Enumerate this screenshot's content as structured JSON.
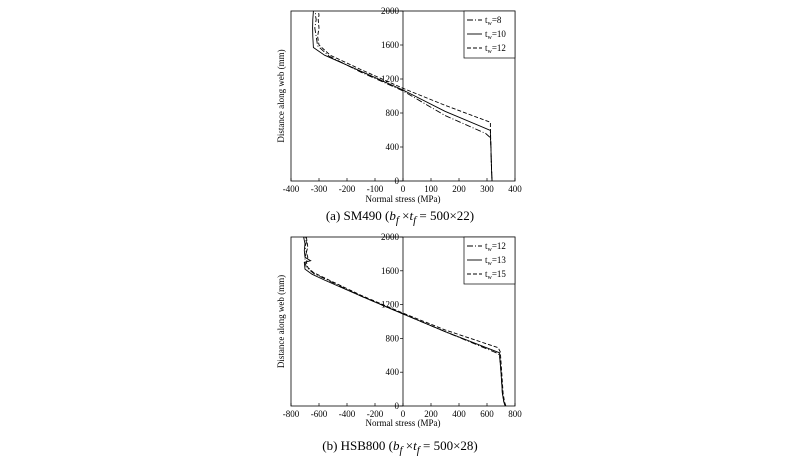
{
  "chart_data": [
    {
      "type": "line",
      "xlabel": "Normal stress (MPa)",
      "ylabel": "Distance along web (mm)",
      "xlim": [
        -400,
        400
      ],
      "ylim": [
        0,
        2000
      ],
      "xticks": [
        "-400",
        "-300",
        "-200",
        "-100",
        "0",
        "100",
        "200",
        "300",
        "400"
      ],
      "yticks": [
        "0",
        "400",
        "800",
        "1200",
        "1600",
        "2000"
      ],
      "legend_position": "top-right",
      "caption": {
        "prefix": "(a)  SM490  (",
        "math": "b",
        "sub1": "f",
        "times": " ×",
        "math2": "t",
        "sub2": "f",
        "suffix": " = 500×22)"
      },
      "series": [
        {
          "name": "t",
          "sub": "w",
          "label_suffix": "=8",
          "dash": "dashdot",
          "x": [
            318,
            316,
            314,
            312,
            295,
            150,
            0,
            -150,
            -265,
            -305,
            -310,
            -315,
            -310,
            -313,
            -312
          ],
          "y": [
            0,
            150,
            400,
            510,
            560,
            770,
            1060,
            1280,
            1470,
            1590,
            1700,
            1800,
            1900,
            1950,
            2000
          ]
        },
        {
          "name": "t",
          "sub": "w",
          "label_suffix": "=10",
          "dash": "solid",
          "x": [
            318,
            316,
            314,
            312,
            312,
            150,
            0,
            -150,
            -280,
            -320,
            -322,
            -323,
            -322,
            -321,
            -320
          ],
          "y": [
            0,
            150,
            400,
            550,
            595,
            820,
            1070,
            1290,
            1480,
            1570,
            1700,
            1800,
            1900,
            1950,
            2000
          ]
        },
        {
          "name": "t",
          "sub": "w",
          "label_suffix": "=12",
          "dash": "dashed",
          "x": [
            318,
            316,
            314,
            312,
            312,
            150,
            0,
            -150,
            -260,
            -300,
            -305,
            -300,
            -303,
            -300,
            -302
          ],
          "y": [
            0,
            150,
            400,
            620,
            690,
            890,
            1090,
            1310,
            1480,
            1600,
            1700,
            1800,
            1900,
            1950,
            2000
          ]
        }
      ]
    },
    {
      "type": "line",
      "xlabel": "Normal stress (MPa)",
      "ylabel": "Distance along web (mm)",
      "xlim": [
        -800,
        800
      ],
      "ylim": [
        0,
        2000
      ],
      "xticks": [
        "-800",
        "-600",
        "-400",
        "-200",
        "0",
        "200",
        "400",
        "600",
        "800"
      ],
      "yticks": [
        "0",
        "400",
        "800",
        "1200",
        "1600",
        "2000"
      ],
      "legend_position": "top-right",
      "caption": {
        "prefix": "(b)  HSB800  (",
        "math": "b",
        "sub1": "f",
        "times": " ×",
        "math2": "t",
        "sub2": "f",
        "suffix": " = 500×28)"
      },
      "series": [
        {
          "name": "t",
          "sub": "w",
          "label_suffix": "=12",
          "dash": "dashdot",
          "x": [
            730,
            720,
            710,
            700,
            690,
            680,
            300,
            0,
            -300,
            -540,
            -640,
            -690,
            -700,
            -700,
            -690,
            -700,
            -690,
            -700
          ],
          "y": [
            0,
            50,
            150,
            400,
            590,
            620,
            880,
            1090,
            1300,
            1490,
            1570,
            1640,
            1700,
            1760,
            1820,
            1880,
            1940,
            2000
          ]
        },
        {
          "name": "t",
          "sub": "w",
          "label_suffix": "=13",
          "dash": "solid",
          "x": [
            730,
            720,
            710,
            700,
            690,
            690,
            300,
            0,
            -300,
            -560,
            -650,
            -700,
            -705,
            -660,
            -700,
            -705,
            -700,
            -710
          ],
          "y": [
            0,
            50,
            150,
            400,
            600,
            630,
            880,
            1090,
            1300,
            1490,
            1560,
            1620,
            1700,
            1720,
            1760,
            1840,
            1920,
            2000
          ]
        },
        {
          "name": "t",
          "sub": "w",
          "label_suffix": "=15",
          "dash": "dashed",
          "x": [
            735,
            725,
            715,
            705,
            695,
            680,
            300,
            0,
            -300,
            -540,
            -640,
            -680,
            -690,
            -680,
            -690,
            -680,
            -685,
            -690
          ],
          "y": [
            0,
            50,
            150,
            400,
            640,
            690,
            900,
            1100,
            1310,
            1500,
            1580,
            1640,
            1700,
            1760,
            1820,
            1880,
            1940,
            2000
          ]
        }
      ]
    }
  ]
}
